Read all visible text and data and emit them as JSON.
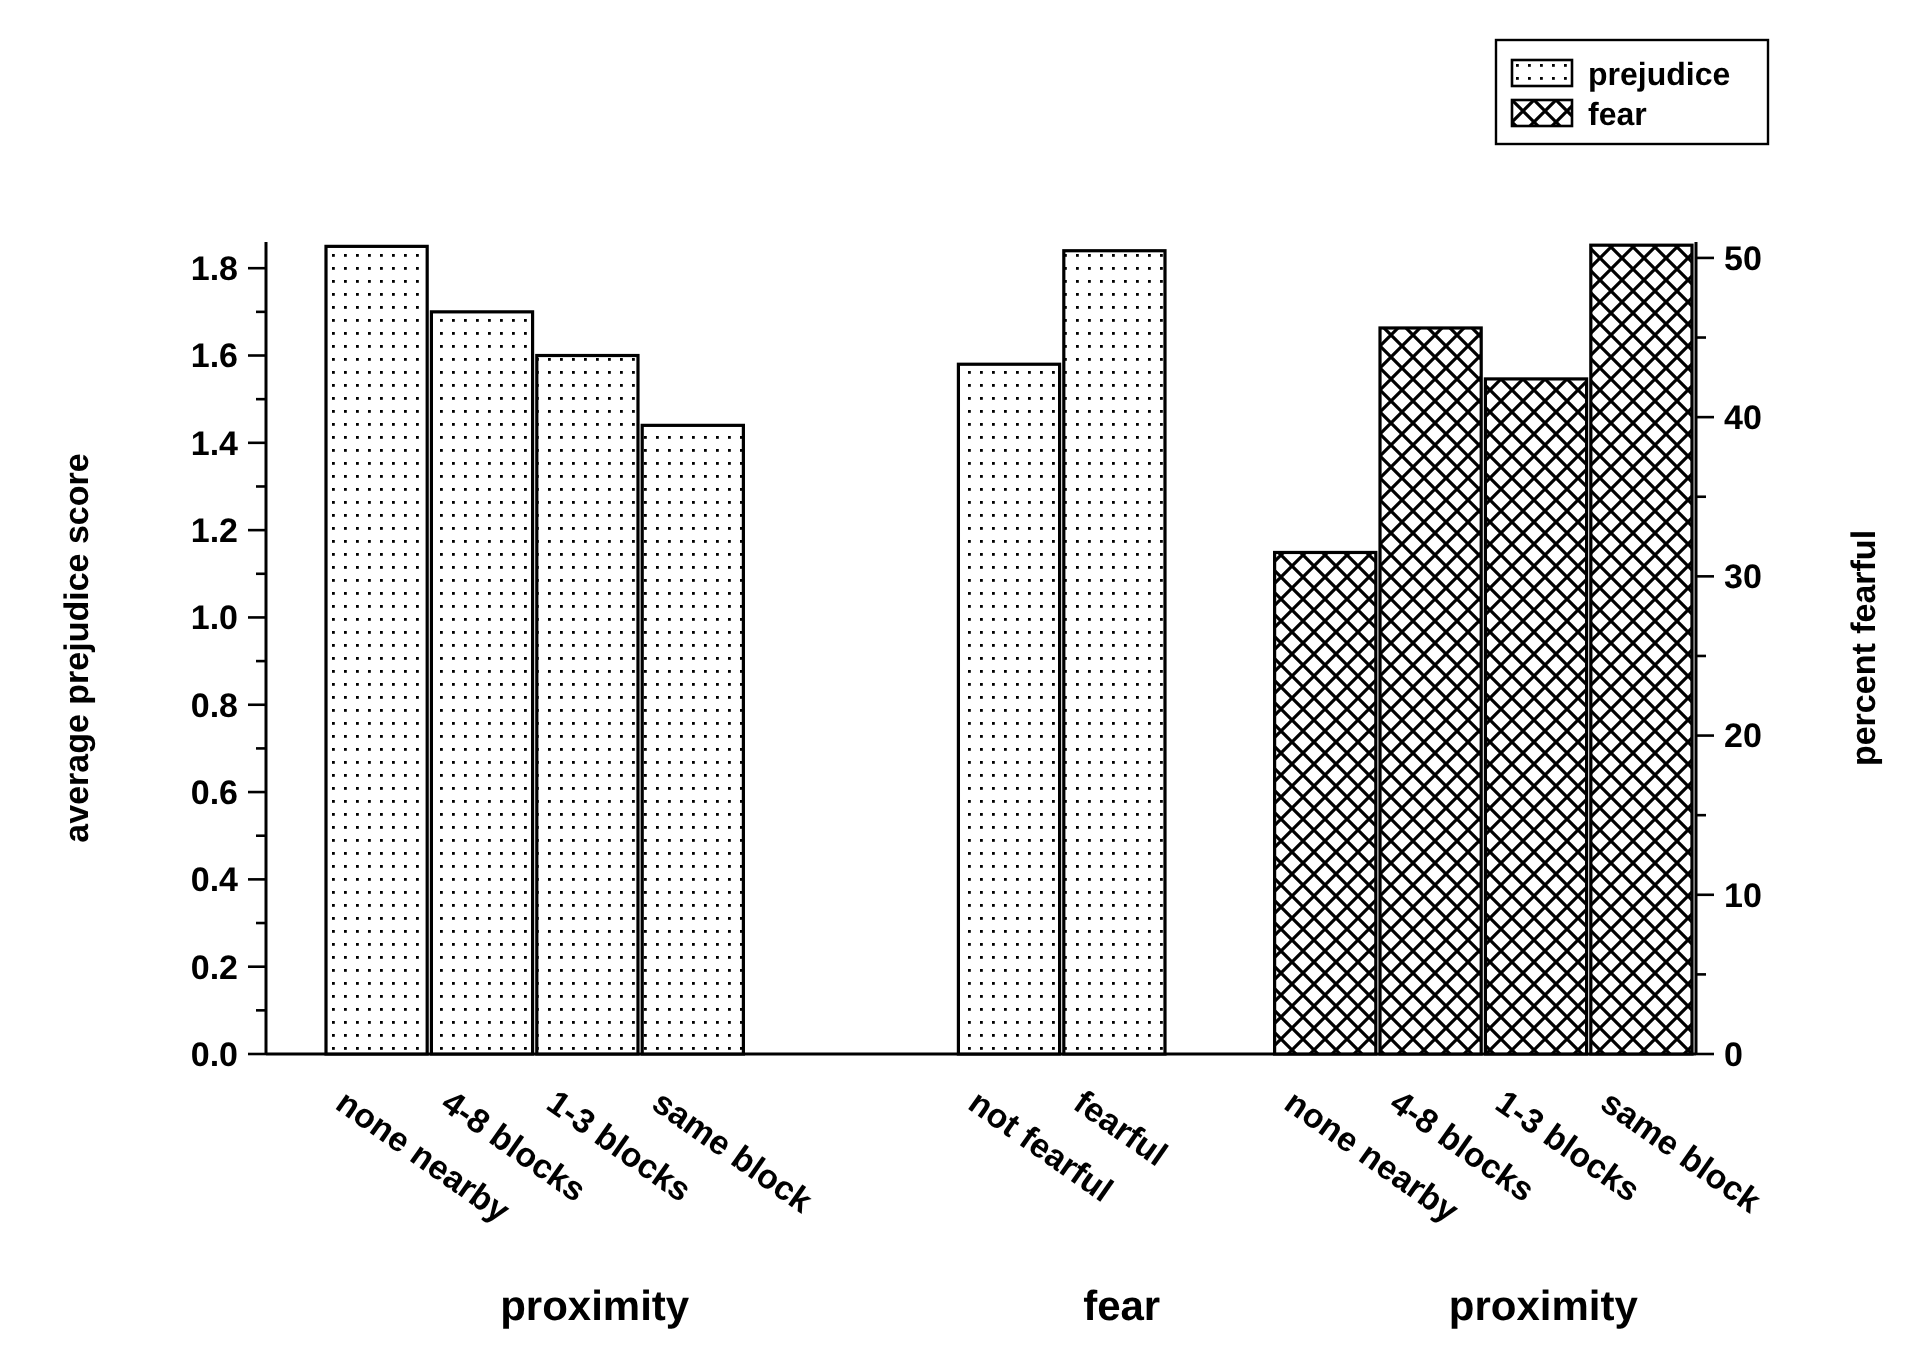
{
  "chart_data": {
    "type": "bar",
    "ylabel": "average prejudice score",
    "y2label": "percent fearful",
    "categories": [
      "none nearby",
      "4-8 blocks",
      "1-3 blocks",
      "same block",
      null,
      null,
      "not fearful",
      "fearful",
      null,
      "none nearby",
      "4-8 blocks",
      "1-3 blocks",
      "same block"
    ],
    "series": [
      {
        "name": "prejudice",
        "color": "#000000",
        "values": [
          1.85,
          1.7,
          1.6,
          1.44,
          null,
          null,
          1.58,
          1.84,
          null,
          null,
          null,
          null,
          null
        ]
      },
      {
        "name": "fear",
        "color": "#000000",
        "axis": "y2",
        "values": [
          null,
          null,
          null,
          null,
          null,
          null,
          null,
          null,
          null,
          31.5,
          45.6,
          42.4,
          50.8
        ]
      }
    ],
    "ylim": [
      0,
      1.86
    ],
    "yticks": [
      {
        "value": 0,
        "label": "0.0"
      },
      {
        "value": 0.1,
        "label": null
      },
      {
        "value": 0.2,
        "label": "0.2"
      },
      {
        "value": 0.3,
        "label": null
      },
      {
        "value": 0.4,
        "label": "0.4"
      },
      {
        "value": 0.5,
        "label": null
      },
      {
        "value": 0.6,
        "label": "0.6"
      },
      {
        "value": 0.7,
        "label": null
      },
      {
        "value": 0.8,
        "label": "0.8"
      },
      {
        "value": 0.9,
        "label": null
      },
      {
        "value": 1,
        "label": "1.0"
      },
      {
        "value": 1.1,
        "label": null
      },
      {
        "value": 1.2,
        "label": "1.2"
      },
      {
        "value": 1.3,
        "label": null
      },
      {
        "value": 1.4,
        "label": "1.4"
      },
      {
        "value": 1.5,
        "label": null
      },
      {
        "value": 1.6,
        "label": "1.6"
      },
      {
        "value": 1.7,
        "label": null
      },
      {
        "value": 1.8,
        "label": "1.8"
      }
    ],
    "y2lim": [
      0,
      51
    ],
    "y2ticks": [
      0,
      {
        "value": 5,
        "label": null
      },
      10,
      {
        "value": 15,
        "label": null
      },
      20,
      {
        "value": 25,
        "label": null
      },
      30,
      {
        "value": 35,
        "label": null
      },
      40,
      {
        "value": 45,
        "label": null
      },
      50
    ],
    "annotations": [
      "proximity",
      "fear",
      "proximity"
    ],
    "legend": "top right",
    "grid": false
  }
}
